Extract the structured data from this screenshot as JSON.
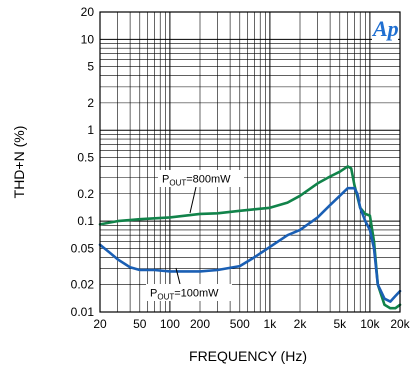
{
  "chart_data": {
    "type": "line",
    "xscale": "log",
    "yscale": "log",
    "xlim": [
      20,
      20000
    ],
    "ylim": [
      0.01,
      20
    ],
    "grid": true,
    "xlabel": "FREQUENCY (Hz)",
    "ylabel": "THD+N (%)",
    "xticks": [
      {
        "value": 20,
        "label": "20"
      },
      {
        "value": 50,
        "label": "50"
      },
      {
        "value": 100,
        "label": "100"
      },
      {
        "value": 200,
        "label": "200"
      },
      {
        "value": 500,
        "label": "500"
      },
      {
        "value": 1000,
        "label": "1k"
      },
      {
        "value": 2000,
        "label": "2k"
      },
      {
        "value": 5000,
        "label": "5k"
      },
      {
        "value": 10000,
        "label": "10k"
      },
      {
        "value": 20000,
        "label": "20k"
      }
    ],
    "yticks": [
      {
        "value": 0.01,
        "label": "0.01"
      },
      {
        "value": 0.02,
        "label": "0.02"
      },
      {
        "value": 0.05,
        "label": "0.05"
      },
      {
        "value": 0.1,
        "label": "0.1"
      },
      {
        "value": 0.2,
        "label": "0.2"
      },
      {
        "value": 0.5,
        "label": "0.5"
      },
      {
        "value": 1,
        "label": "1"
      },
      {
        "value": 2,
        "label": "2"
      },
      {
        "value": 5,
        "label": "5"
      },
      {
        "value": 10,
        "label": "10"
      },
      {
        "value": 20,
        "label": "20"
      }
    ],
    "series": [
      {
        "name": "POUT=800mW",
        "label_main": "P",
        "label_sub": "OUT",
        "label_rest": "=800mW",
        "color": "#11834a",
        "x": [
          20,
          30,
          50,
          100,
          200,
          300,
          500,
          700,
          1000,
          1500,
          2000,
          3000,
          4000,
          5000,
          6000,
          6500,
          7000,
          8000,
          9000,
          10000,
          11000,
          12000,
          14000,
          16000,
          18000,
          20000
        ],
        "y": [
          0.092,
          0.1,
          0.105,
          0.11,
          0.12,
          0.122,
          0.13,
          0.135,
          0.14,
          0.16,
          0.19,
          0.26,
          0.31,
          0.35,
          0.4,
          0.38,
          0.25,
          0.14,
          0.12,
          0.115,
          0.06,
          0.02,
          0.012,
          0.011,
          0.011,
          0.012
        ]
      },
      {
        "name": "POUT=100mW",
        "label_main": "P",
        "label_sub": "OUT",
        "label_rest": "=100mW",
        "color": "#1a5fb4",
        "x": [
          20,
          25,
          30,
          40,
          50,
          70,
          100,
          150,
          200,
          300,
          500,
          700,
          1000,
          1500,
          2000,
          3000,
          4000,
          5000,
          6000,
          7000,
          7500,
          8000,
          9000,
          10000,
          11000,
          12000,
          14000,
          16000,
          18000,
          20000
        ],
        "y": [
          0.055,
          0.045,
          0.038,
          0.031,
          0.029,
          0.029,
          0.028,
          0.028,
          0.028,
          0.029,
          0.032,
          0.04,
          0.052,
          0.07,
          0.08,
          0.11,
          0.15,
          0.19,
          0.23,
          0.23,
          0.2,
          0.14,
          0.1,
          0.08,
          0.05,
          0.02,
          0.014,
          0.013,
          0.015,
          0.017
        ]
      }
    ]
  }
}
